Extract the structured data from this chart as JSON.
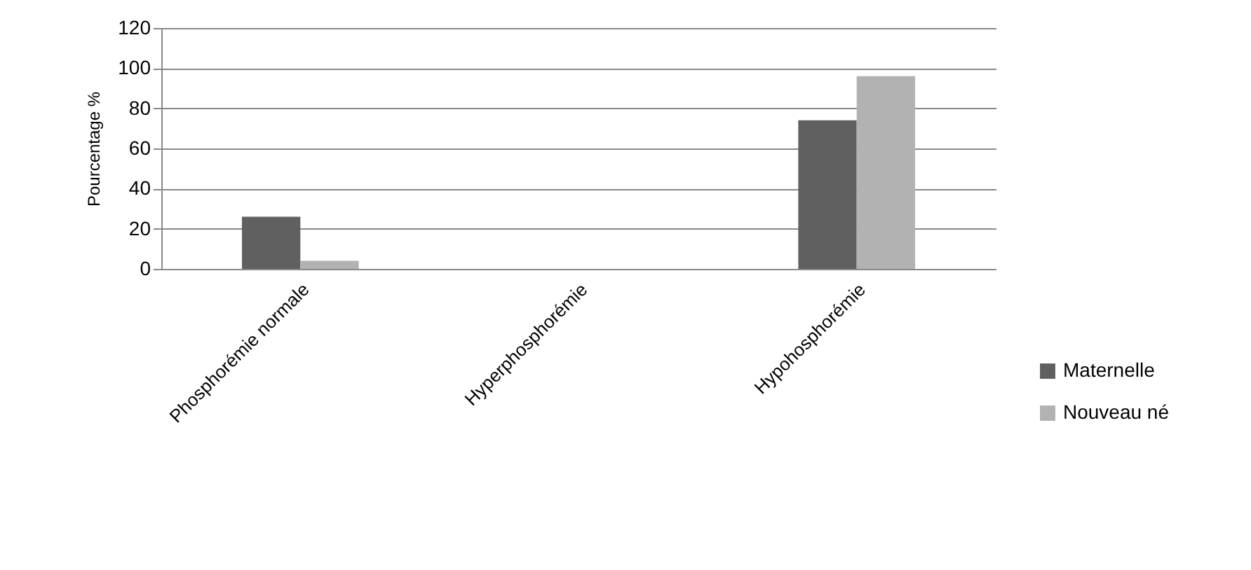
{
  "chart_data": {
    "type": "bar",
    "ylabel": "Pourcentage %",
    "categories": [
      "Phosphorémie normale",
      "Hyperphosphorémie",
      "Hypohosphorémie"
    ],
    "series": [
      {
        "name": "Maternelle",
        "color": "#606060",
        "values": [
          26,
          0,
          74
        ]
      },
      {
        "name": "Nouveau né",
        "color": "#b2b2b2",
        "values": [
          4,
          0,
          96
        ]
      }
    ],
    "ylim": [
      0,
      120
    ],
    "yticks": [
      0,
      20,
      40,
      60,
      80,
      100,
      120
    ],
    "grid": "y",
    "legend": "right"
  }
}
